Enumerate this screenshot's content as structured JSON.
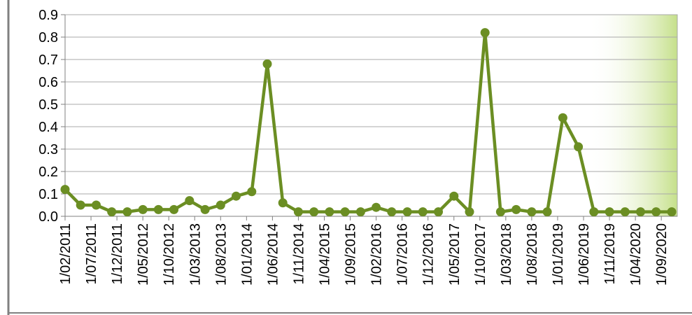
{
  "chart_data": {
    "type": "line",
    "title": "",
    "xlabel": "",
    "ylabel": "",
    "ylim": [
      0,
      0.9
    ],
    "y_ticks": [
      "0.0",
      "0.1",
      "0.2",
      "0.3",
      "0.4",
      "0.5",
      "0.6",
      "0.7",
      "0.8",
      "0.9"
    ],
    "x_tick_labels": [
      "1/02/2011",
      "1/07/2011",
      "1/12/2011",
      "1/05/2012",
      "1/10/2012",
      "1/03/2013",
      "1/08/2013",
      "1/01/2014",
      "1/06/2014",
      "1/11/2014",
      "1/04/2015",
      "1/09/2015",
      "1/02/2016",
      "1/07/2016",
      "1/12/2016",
      "1/05/2017",
      "1/10/2017",
      "1/03/2018",
      "1/08/2018",
      "1/01/2019",
      "1/06/2019",
      "1/11/2019",
      "1/04/2020",
      "1/09/2020"
    ],
    "grid": true,
    "colors": {
      "line": "#6b8e23",
      "grid": "#a9a9a9",
      "axis": "#808080",
      "highlight": "#c5e08a"
    },
    "series": [
      {
        "values": [
          0.12,
          0.05,
          0.05,
          0.02,
          0.02,
          0.03,
          0.03,
          0.03,
          0.07,
          0.03,
          0.05,
          0.09,
          0.11,
          0.68,
          0.06,
          0.02,
          0.02,
          0.02,
          0.02,
          0.02,
          0.04,
          0.02,
          0.02,
          0.02,
          0.02,
          0.09,
          0.02,
          0.82,
          0.02,
          0.03,
          0.02,
          0.02,
          0.44,
          0.31,
          0.02,
          0.02,
          0.02,
          0.02,
          0.02,
          0.02
        ]
      }
    ]
  }
}
